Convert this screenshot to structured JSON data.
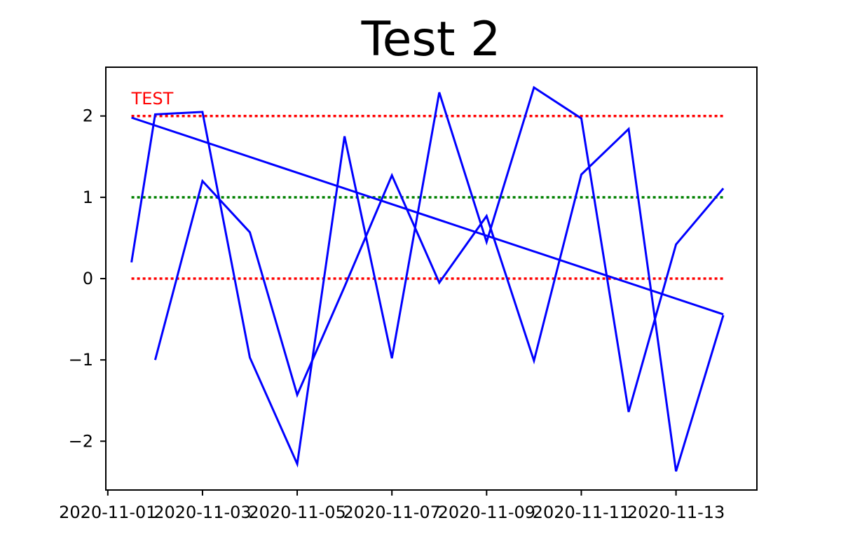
{
  "chart_data": {
    "type": "line",
    "title": "Test 2",
    "xlabel": "",
    "ylabel": "",
    "xlim": [
      "2020-10-31T23:00",
      "2020-11-14T17:00"
    ],
    "ylim": [
      -2.6,
      2.6
    ],
    "grid": false,
    "x_ticks": [
      "2020-11-01",
      "2020-11-03",
      "2020-11-05",
      "2020-11-07",
      "2020-11-09",
      "2020-11-11",
      "2020-11-13"
    ],
    "y_ticks": [
      -2,
      -1,
      0,
      1,
      2
    ],
    "y_tick_labels": [
      "−2",
      "−1",
      "0",
      "1",
      "2"
    ],
    "series": [
      {
        "color": "#0000ff",
        "points": [
          {
            "x": "2020-11-01T12:00",
            "y": 0.2
          },
          {
            "x": "2020-11-02T00:00",
            "y": 2.02
          },
          {
            "x": "2020-11-03T00:00",
            "y": 2.05
          },
          {
            "x": "2020-11-04T00:00",
            "y": -0.97
          },
          {
            "x": "2020-11-05T00:00",
            "y": -2.28
          },
          {
            "x": "2020-11-06T00:00",
            "y": 1.75
          },
          {
            "x": "2020-11-07T00:00",
            "y": -0.98
          },
          {
            "x": "2020-11-08T00:00",
            "y": 2.29
          },
          {
            "x": "2020-11-09T00:00",
            "y": 0.45
          },
          {
            "x": "2020-11-10T00:00",
            "y": 2.35
          },
          {
            "x": "2020-11-11T00:00",
            "y": 1.97
          },
          {
            "x": "2020-11-12T00:00",
            "y": -1.64
          },
          {
            "x": "2020-11-13T00:00",
            "y": 0.42
          },
          {
            "x": "2020-11-14T00:00",
            "y": 1.11
          }
        ]
      },
      {
        "color": "#0000ff",
        "points": [
          {
            "x": "2020-11-01T12:00",
            "y": 1.98
          },
          {
            "x": "2020-11-14T00:00",
            "y": -0.44
          }
        ]
      },
      {
        "color": "#0000ff",
        "points": [
          {
            "x": "2020-11-02T00:00",
            "y": -1.0
          },
          {
            "x": "2020-11-03T00:00",
            "y": 1.2
          },
          {
            "x": "2020-11-04T00:00",
            "y": 0.57
          },
          {
            "x": "2020-11-05T00:00",
            "y": -1.43
          },
          {
            "x": "2020-11-06T00:00",
            "y": -0.1
          },
          {
            "x": "2020-11-07T00:00",
            "y": 1.27
          },
          {
            "x": "2020-11-08T00:00",
            "y": -0.05
          },
          {
            "x": "2020-11-09T00:00",
            "y": 0.77
          },
          {
            "x": "2020-11-10T00:00",
            "y": -1.01
          },
          {
            "x": "2020-11-11T00:00",
            "y": 1.28
          },
          {
            "x": "2020-11-12T00:00",
            "y": 1.84
          },
          {
            "x": "2020-11-13T00:00",
            "y": -2.37
          },
          {
            "x": "2020-11-14T00:00",
            "y": -0.45
          }
        ]
      }
    ],
    "reference_lines": [
      {
        "y": 2,
        "color": "#ff0000",
        "style": "dotted",
        "x_start": "2020-11-01T12:00",
        "x_end": "2020-11-14T00:00"
      },
      {
        "y": 1,
        "color": "#008000",
        "style": "dotted",
        "x_start": "2020-11-01T12:00",
        "x_end": "2020-11-14T00:00"
      },
      {
        "y": 0,
        "color": "#ff0000",
        "style": "dotted",
        "x_start": "2020-11-01T12:00",
        "x_end": "2020-11-14T00:00"
      }
    ],
    "annotations": [
      {
        "text": "TEST",
        "x": "2020-11-01T12:00",
        "y": 2.22,
        "color": "#ff0000"
      }
    ]
  }
}
